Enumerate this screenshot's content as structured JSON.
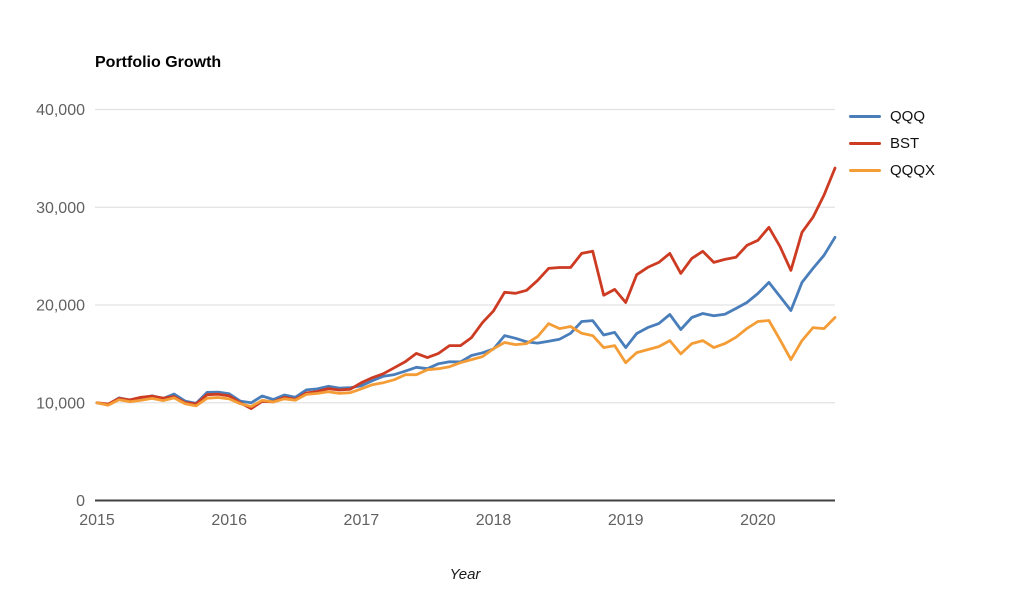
{
  "title": "Portfolio Growth",
  "xlabel": "Year",
  "chart_data": {
    "type": "line",
    "title": "Portfolio Growth",
    "xlabel": "Year",
    "x_start_year": 2015,
    "x_step": "month",
    "points_per_year": 12,
    "xticks": [
      "2015",
      "2016",
      "2017",
      "2018",
      "2019",
      "2020"
    ],
    "yticks": [
      {
        "value": 0,
        "label": "0"
      },
      {
        "value": 10000,
        "label": "10,000"
      },
      {
        "value": 20000,
        "label": "20,000"
      },
      {
        "value": 30000,
        "label": "30,000"
      },
      {
        "value": 40000,
        "label": "40,000"
      }
    ],
    "ylim": [
      0,
      40000
    ],
    "grid": true,
    "legend_position": "right",
    "axis_color": "#424242",
    "grid_color": "#e3e3e3",
    "series": [
      {
        "name": "QQQ",
        "color": "#4a7ebb",
        "values": [
          10000,
          9790,
          10500,
          10260,
          10480,
          10700,
          10430,
          10900,
          10170,
          9930,
          11060,
          11090,
          10920,
          10170,
          10000,
          10690,
          10330,
          10790,
          10560,
          11310,
          11420,
          11680,
          11500,
          11540,
          11740,
          12260,
          12720,
          12880,
          13240,
          13630,
          13480,
          13990,
          14190,
          14180,
          14830,
          15110,
          15500,
          16870,
          16590,
          16240,
          16100,
          16300,
          16500,
          17100,
          18310,
          18400,
          16930,
          17200,
          15640,
          17080,
          17690,
          18100,
          19030,
          17490,
          18720,
          19130,
          18900,
          19050,
          19640,
          20260,
          21180,
          22310,
          20880,
          19440,
          22310,
          23740,
          25080,
          26930
        ]
      },
      {
        "name": "BST",
        "color": "#cc3b22",
        "values": [
          10000,
          9850,
          10450,
          10290,
          10560,
          10680,
          10480,
          10630,
          10010,
          9880,
          10820,
          10870,
          10700,
          10000,
          9400,
          10150,
          10100,
          10550,
          10340,
          11000,
          11150,
          11450,
          11300,
          11390,
          12050,
          12560,
          12970,
          13590,
          14210,
          15050,
          14620,
          15050,
          15850,
          15850,
          16670,
          18200,
          19400,
          21300,
          21200,
          21500,
          22520,
          23740,
          23840,
          23840,
          25280,
          25500,
          21000,
          21600,
          20260,
          23100,
          23850,
          24360,
          25280,
          23230,
          24770,
          25490,
          24360,
          24670,
          24880,
          26100,
          26620,
          27950,
          26000,
          23540,
          27440,
          28980,
          31240,
          34010
        ]
      },
      {
        "name": "QQQX",
        "color": "#f49d37",
        "values": [
          10000,
          9750,
          10300,
          10110,
          10260,
          10440,
          10220,
          10500,
          9900,
          9680,
          10470,
          10540,
          10390,
          9900,
          9620,
          10250,
          10080,
          10400,
          10260,
          10850,
          10960,
          11130,
          10960,
          11030,
          11430,
          11850,
          12050,
          12360,
          12870,
          12870,
          13380,
          13480,
          13690,
          14100,
          14410,
          14720,
          15530,
          16160,
          15950,
          16050,
          16770,
          18100,
          17590,
          17800,
          17100,
          16870,
          15640,
          15850,
          14100,
          15130,
          15440,
          15740,
          16360,
          15000,
          16050,
          16360,
          15640,
          16050,
          16700,
          17600,
          18310,
          18410,
          16460,
          14410,
          16360,
          17690,
          17590,
          18720
        ]
      }
    ]
  }
}
